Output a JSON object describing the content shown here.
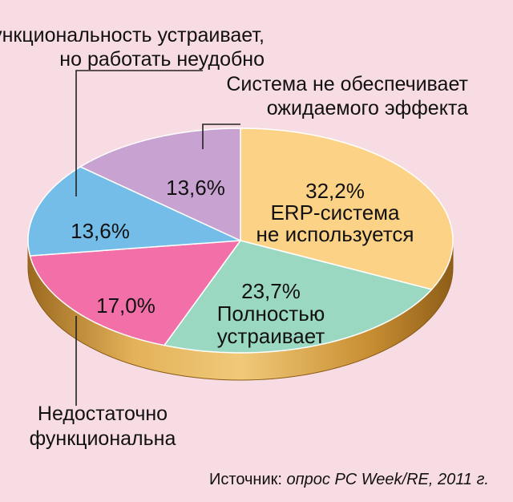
{
  "chart_data": {
    "type": "pie",
    "title": "",
    "slices": [
      {
        "value": 32.2,
        "value_label": "32,2%",
        "label": "ERP-система не используется",
        "label_lines": [
          "ERP-система",
          "не используется"
        ],
        "label_placement": "inside",
        "color": "#fcd286"
      },
      {
        "value": 23.7,
        "value_label": "23,7%",
        "label": "Полностью устраивает",
        "label_lines": [
          "Полностью",
          "устраивает"
        ],
        "label_placement": "inside",
        "color": "#9ad8c2"
      },
      {
        "value": 17.0,
        "value_label": "17,0%",
        "label": "Недостаточно функциональна",
        "label_lines": [
          "Недостаточно",
          "функциональна"
        ],
        "label_placement": "callout-bottom-left",
        "color": "#f26fa8"
      },
      {
        "value": 13.6,
        "value_label": "13,6%",
        "label": "Функциональность устраивает, но работать неудобно",
        "label_lines": [
          "Функциональность устраивает,",
          "но работать неудобно"
        ],
        "label_placement": "callout-top-left",
        "color": "#75bde9"
      },
      {
        "value": 13.6,
        "value_label": "13,6%",
        "label": "Система не обеспечивает ожидаемого эффекта",
        "label_lines": [
          "Система не обеспечивает",
          "ожидаемого эффекта"
        ],
        "label_placement": "callout-top-right",
        "color": "#c8a3d2"
      }
    ],
    "start_angle": "12 o'clock",
    "direction": "clockwise",
    "style": "3d-tilted",
    "depth_color": "#d39a3c",
    "legend": "none"
  },
  "source": {
    "prefix": "Источник: ",
    "text": "опрос PC Week/RE, 2011 г."
  },
  "colors": {
    "background": "#f8dce3",
    "leader_line": "#222222"
  }
}
